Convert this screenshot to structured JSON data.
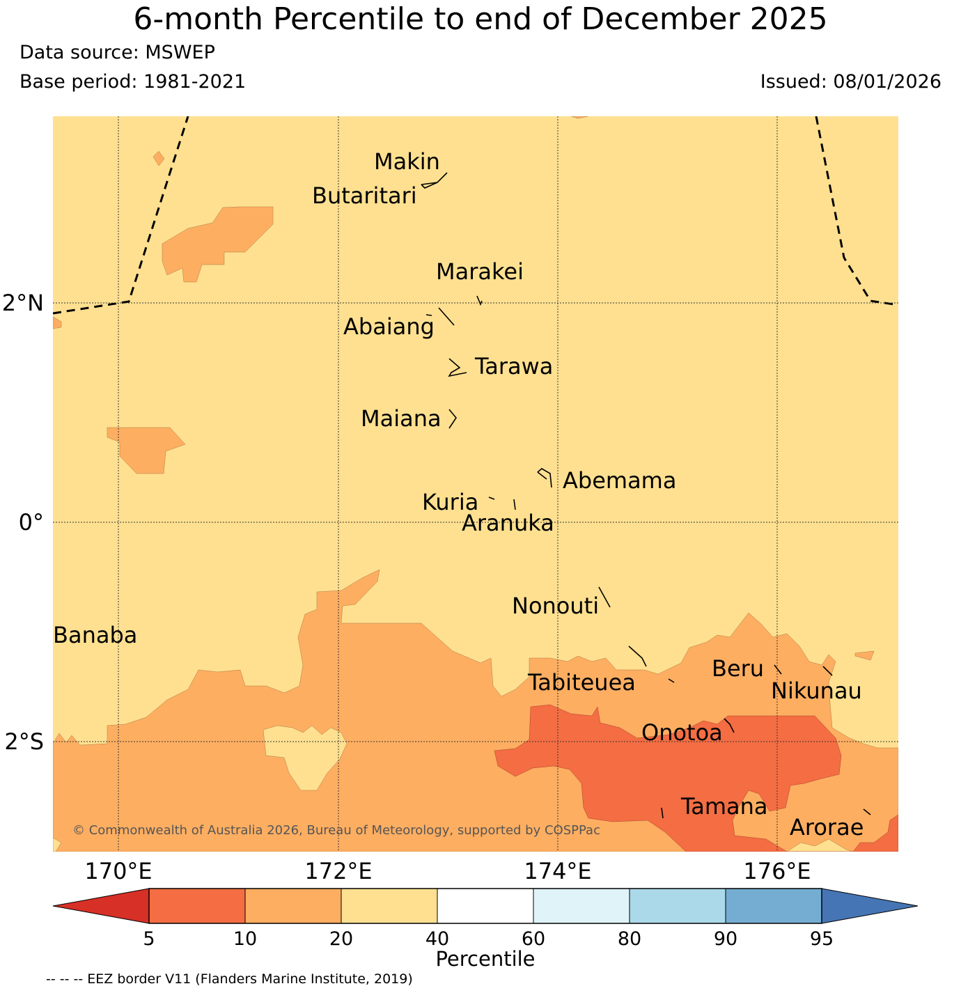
{
  "title": "6-month Percentile to end of December 2025",
  "data_source": "Data source: MSWEP",
  "base_period": "Base period: 1981-2021",
  "issued": "Issued: 08/01/2026",
  "copyright": "© Commonwealth of Australia 2026, Bureau of Meteorology, supported by COSPPac",
  "eez_note": "-- -- -- EEZ border V11 (Flanders Marine Institute, 2019)",
  "axes": {
    "lat_labels": [
      "2°N",
      "0°",
      "2°S"
    ],
    "lon_labels": [
      "170°E",
      "172°E",
      "174°E",
      "176°E"
    ]
  },
  "islands": {
    "makin": "Makin",
    "butaritari": "Butaritari",
    "marakei": "Marakei",
    "abaiang": "Abaiang",
    "tarawa": "Tarawa",
    "maiana": "Maiana",
    "abemama": "Abemama",
    "kuria": "Kuria",
    "aranuka": "Aranuka",
    "nonouti": "Nonouti",
    "banaba": "Banaba",
    "tabiteuea": "Tabiteuea",
    "beru": "Beru",
    "nikunau": "Nikunau",
    "onotoa": "Onotoa",
    "tamana": "Tamana",
    "arorae": "Arorae"
  },
  "colorbar": {
    "title": "Percentile",
    "ticks": [
      "5",
      "10",
      "20",
      "40",
      "60",
      "80",
      "90",
      "95"
    ],
    "colors": {
      "below_5": "#d73027",
      "5_10": "#f46d43",
      "10_20": "#fdae61",
      "20_40": "#fee090",
      "40_60": "#ffffff",
      "60_80": "#e0f3f8",
      "80_90": "#abd9e9",
      "90_95": "#74add1",
      "above_95": "#4575b4"
    }
  }
}
